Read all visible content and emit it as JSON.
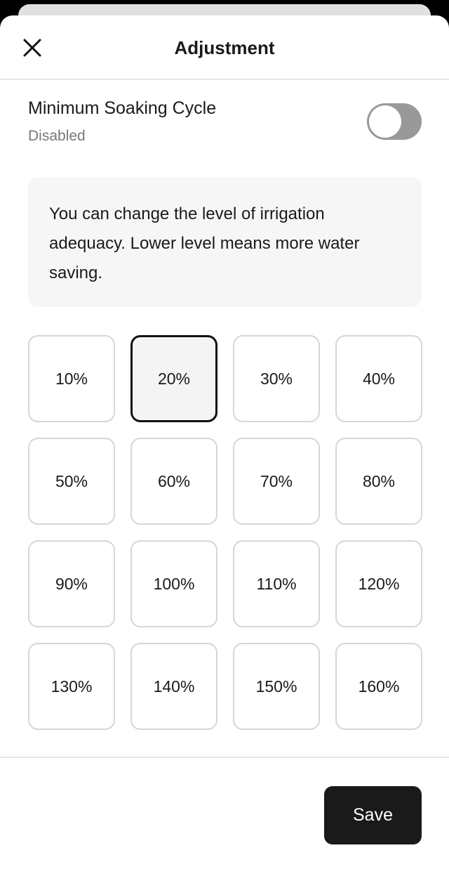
{
  "header": {
    "title": "Adjustment",
    "close_icon": "close-icon"
  },
  "soaking": {
    "label": "Minimum Soaking Cycle",
    "status": "Disabled",
    "enabled": false
  },
  "info": {
    "text": "You can change the level of irrigation adequacy. Lower level means more water saving."
  },
  "levels": {
    "options": [
      "10%",
      "20%",
      "30%",
      "40%",
      "50%",
      "60%",
      "70%",
      "80%",
      "90%",
      "100%",
      "110%",
      "120%",
      "130%",
      "140%",
      "150%",
      "160%"
    ],
    "selected": "20%"
  },
  "footer": {
    "save_label": "Save"
  }
}
